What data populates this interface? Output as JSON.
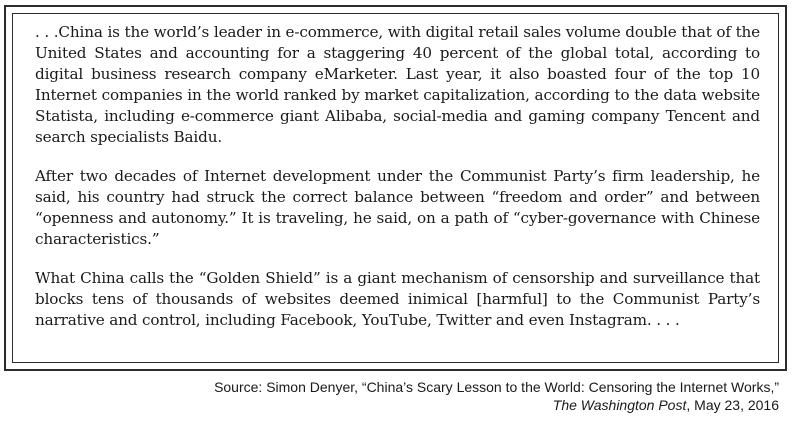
{
  "excerpt": {
    "paragraphs": [
      ". . .China is the world’s leader in e-commerce, with digital retail sales volume double that of the United States and accounting for a staggering 40 percent of the global total, according to digital business research company eMarketer. Last year, it also boasted four of the top 10 Internet companies in the world ranked by market capitalization, according to the data website Statista, including e-commerce giant Alibaba, social-media and gaming company Tencent and search specialists Baidu.",
      "After two decades of Internet development under the Communist Party’s firm leadership, he said, his country had struck the correct balance between “freedom and order” and between “openness and autonomy.” It is traveling, he said, on a path of “cyber-governance with Chinese characteristics.”",
      "What China calls the “Golden Shield” is a giant mechanism of censorship and surveillance that blocks tens of thousands of websites deemed inimical [harmful] to the Communist Party’s narrative and control, including Facebook, YouTube, Twitter and even Instagram. . . ."
    ]
  },
  "source": {
    "line1": "Source: Simon Denyer, “China’s Scary Lesson to the World: Censoring the Internet Works,”",
    "publication": "The Washington Post",
    "date": ", May 23, 2016"
  }
}
